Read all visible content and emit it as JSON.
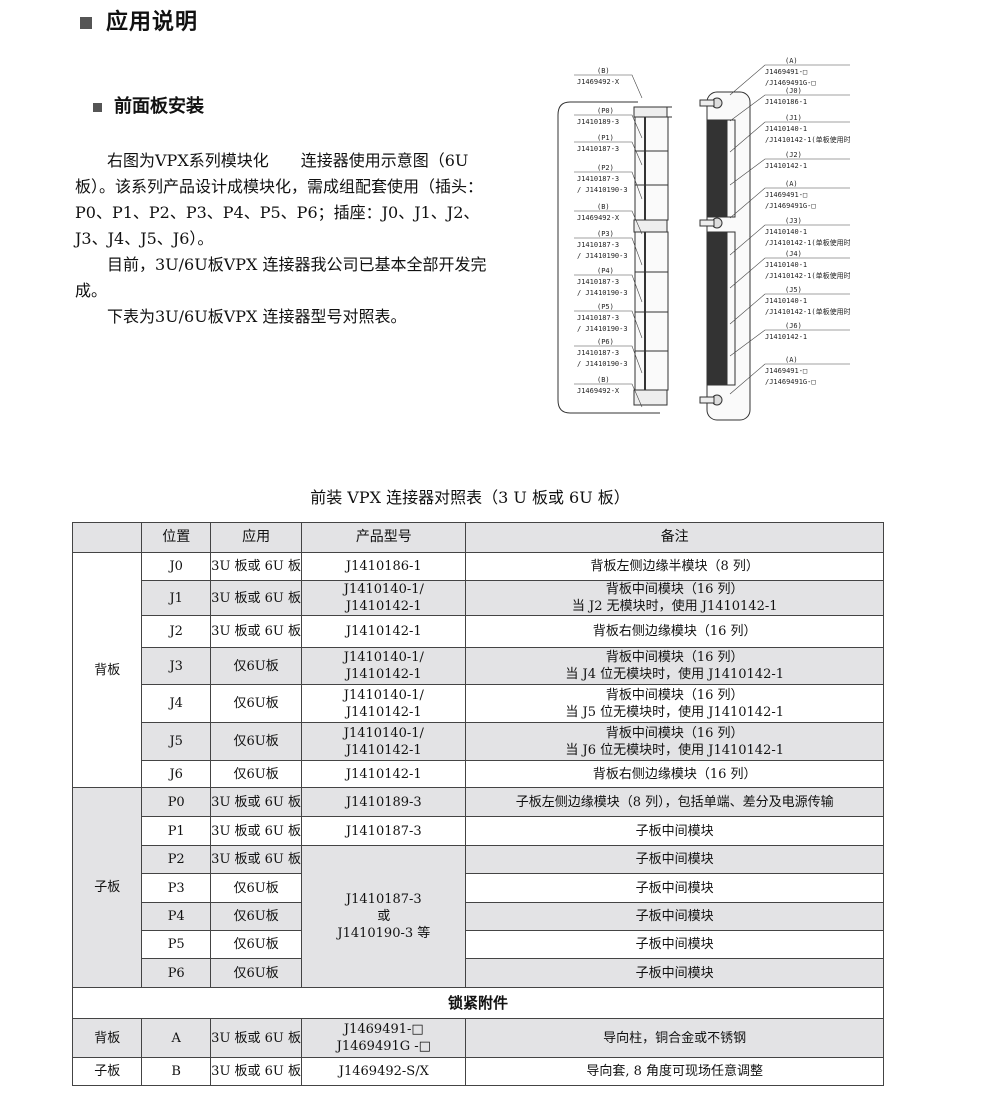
{
  "heading": "应用说明",
  "subheading": "前面板安装",
  "paragraphs": [
    "右图为VPX系列模块化　　连接器使用示意图（6U板）。该系列产品设计成模块化，需成组配套使用（插头：P0、P1、P2、P3、P4、P5、P6；插座：J0、J1、J2、J3、J4、J5、J6）。",
    "目前，3U/6U板VPX 连接器我公司已基本全部开发完成。",
    "下表为3U/6U板VPX 连接器型号对照表。"
  ],
  "diagram": {
    "left_labels": [
      [
        "(B)",
        "J1469492-X"
      ],
      [
        "(P0)",
        "J1410189-3"
      ],
      [
        "(P1)",
        "J1410187-3"
      ],
      [
        "(P2)",
        "J1410187-3",
        "/ J1410190-3"
      ],
      [
        "(B)",
        "J1469492-X"
      ],
      [
        "(P3)",
        "J1410187-3",
        "/ J1410190-3"
      ],
      [
        "(P4)",
        "J1410187-3",
        "/ J1410190-3"
      ],
      [
        "(P5)",
        "J1410187-3",
        "/ J1410190-3"
      ],
      [
        "(P6)",
        "J1410187-3",
        "/ J1410190-3"
      ],
      [
        "(B)",
        "J1469492-X"
      ]
    ],
    "right_labels": [
      [
        "(A)",
        "J1469491-□",
        "/J1469491G-□"
      ],
      [
        "(J0)",
        "J1410186-1"
      ],
      [
        "(J1)",
        "J1410140-1",
        "/J1410142-1(单板使用时)"
      ],
      [
        "(J2)",
        "J1410142-1"
      ],
      [
        "(A)",
        "J1469491-□",
        "/J1469491G-□"
      ],
      [
        "(J3)",
        "J1410140-1",
        "/J1410142-1(单板使用时)"
      ],
      [
        "(J4)",
        "J1410140-1",
        "/J1410142-1(单板使用时)"
      ],
      [
        "(J5)",
        "J1410140-1",
        "/J1410142-1(单板使用时)"
      ],
      [
        "(J6)",
        "J1410142-1"
      ],
      [
        "(A)",
        "J1469491-□",
        "/J1469491G-□"
      ]
    ]
  },
  "table": {
    "caption": "前装 VPX 连接器对照表（3 U 板或 6U 板）",
    "headers": [
      "",
      "位置",
      "应用",
      "产品型号",
      "备注"
    ],
    "backplane_label": "背板",
    "backplane_rows": [
      {
        "pos": "J0",
        "app": "3U 板或 6U 板",
        "model": "J1410186-1",
        "note": "背板左侧边缘半模块（8 列）"
      },
      {
        "pos": "J1",
        "app": "3U 板或 6U 板",
        "model": "J1410140-1/\nJ1410142-1",
        "note": "背板中间模块（16 列）\n当 J2 无模块时，使用 J1410142-1"
      },
      {
        "pos": "J2",
        "app": "3U 板或 6U 板",
        "model": "J1410142-1",
        "note": "背板右侧边缘模块（16 列）"
      },
      {
        "pos": "J3",
        "app": "仅6U板",
        "model": "J1410140-1/\nJ1410142-1",
        "note": "背板中间模块（16 列）\n当 J4 位无模块时，使用 J1410142-1"
      },
      {
        "pos": "J4",
        "app": "仅6U板",
        "model": "J1410140-1/\nJ1410142-1",
        "note": "背板中间模块（16 列）\n当 J5 位无模块时，使用 J1410142-1"
      },
      {
        "pos": "J5",
        "app": "仅6U板",
        "model": "J1410140-1/\nJ1410142-1",
        "note": "背板中间模块（16 列）\n当 J6 位无模块时，使用 J1410142-1"
      },
      {
        "pos": "J6",
        "app": "仅6U板",
        "model": "J1410142-1",
        "note": "背板右侧边缘模块（16 列）"
      }
    ],
    "daughter_label": "子板",
    "daughter_rows": [
      {
        "pos": "P0",
        "app": "3U 板或 6U 板",
        "model": "J1410189-3",
        "note": "子板左侧边缘模块（8 列），包括单端、差分及电源传输"
      },
      {
        "pos": "P1",
        "app": "3U 板或 6U 板",
        "model": "J1410187-3",
        "note": "子板中间模块"
      },
      {
        "pos": "P2",
        "app": "3U 板或 6U 板",
        "note": "子板中间模块"
      },
      {
        "pos": "P3",
        "app": "仅6U板",
        "note": "子板中间模块"
      },
      {
        "pos": "P4",
        "app": "仅6U板",
        "note": "子板中间模块"
      },
      {
        "pos": "P5",
        "app": "仅6U板",
        "note": "子板中间模块"
      },
      {
        "pos": "P6",
        "app": "仅6U板",
        "note": "子板中间模块"
      }
    ],
    "daughter_merged_model": "J1410187-3\n或\nJ1410190-3 等",
    "lock_section": "锁紧附件",
    "lock_rows": [
      {
        "board": "背板",
        "pos": "A",
        "app": "3U 板或 6U 板",
        "model": "J1469491-□\nJ1469491G -□",
        "note": "导向柱，铜合金或不锈钢"
      },
      {
        "board": "子板",
        "pos": "B",
        "app": "3U 板或 6U 板",
        "model": "J1469492-S/X",
        "note": "导向套, 8 角度可现场任意调整"
      }
    ]
  }
}
